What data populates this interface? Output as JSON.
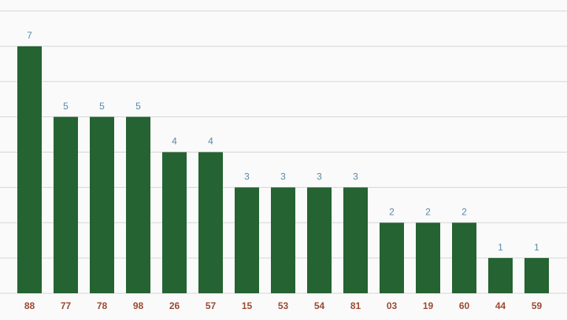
{
  "chart_data": {
    "type": "bar",
    "categories": [
      "88",
      "77",
      "78",
      "98",
      "26",
      "57",
      "15",
      "53",
      "54",
      "81",
      "03",
      "19",
      "60",
      "44",
      "59"
    ],
    "values": [
      7,
      5,
      5,
      5,
      4,
      4,
      3,
      3,
      3,
      3,
      2,
      2,
      2,
      1,
      1
    ],
    "color": "#256332",
    "ylim": [
      0,
      8
    ],
    "yticks": [
      0,
      1,
      2,
      3,
      4,
      5,
      6,
      7,
      8
    ],
    "ytick_labels": false,
    "grid": true,
    "data_labels": true
  }
}
